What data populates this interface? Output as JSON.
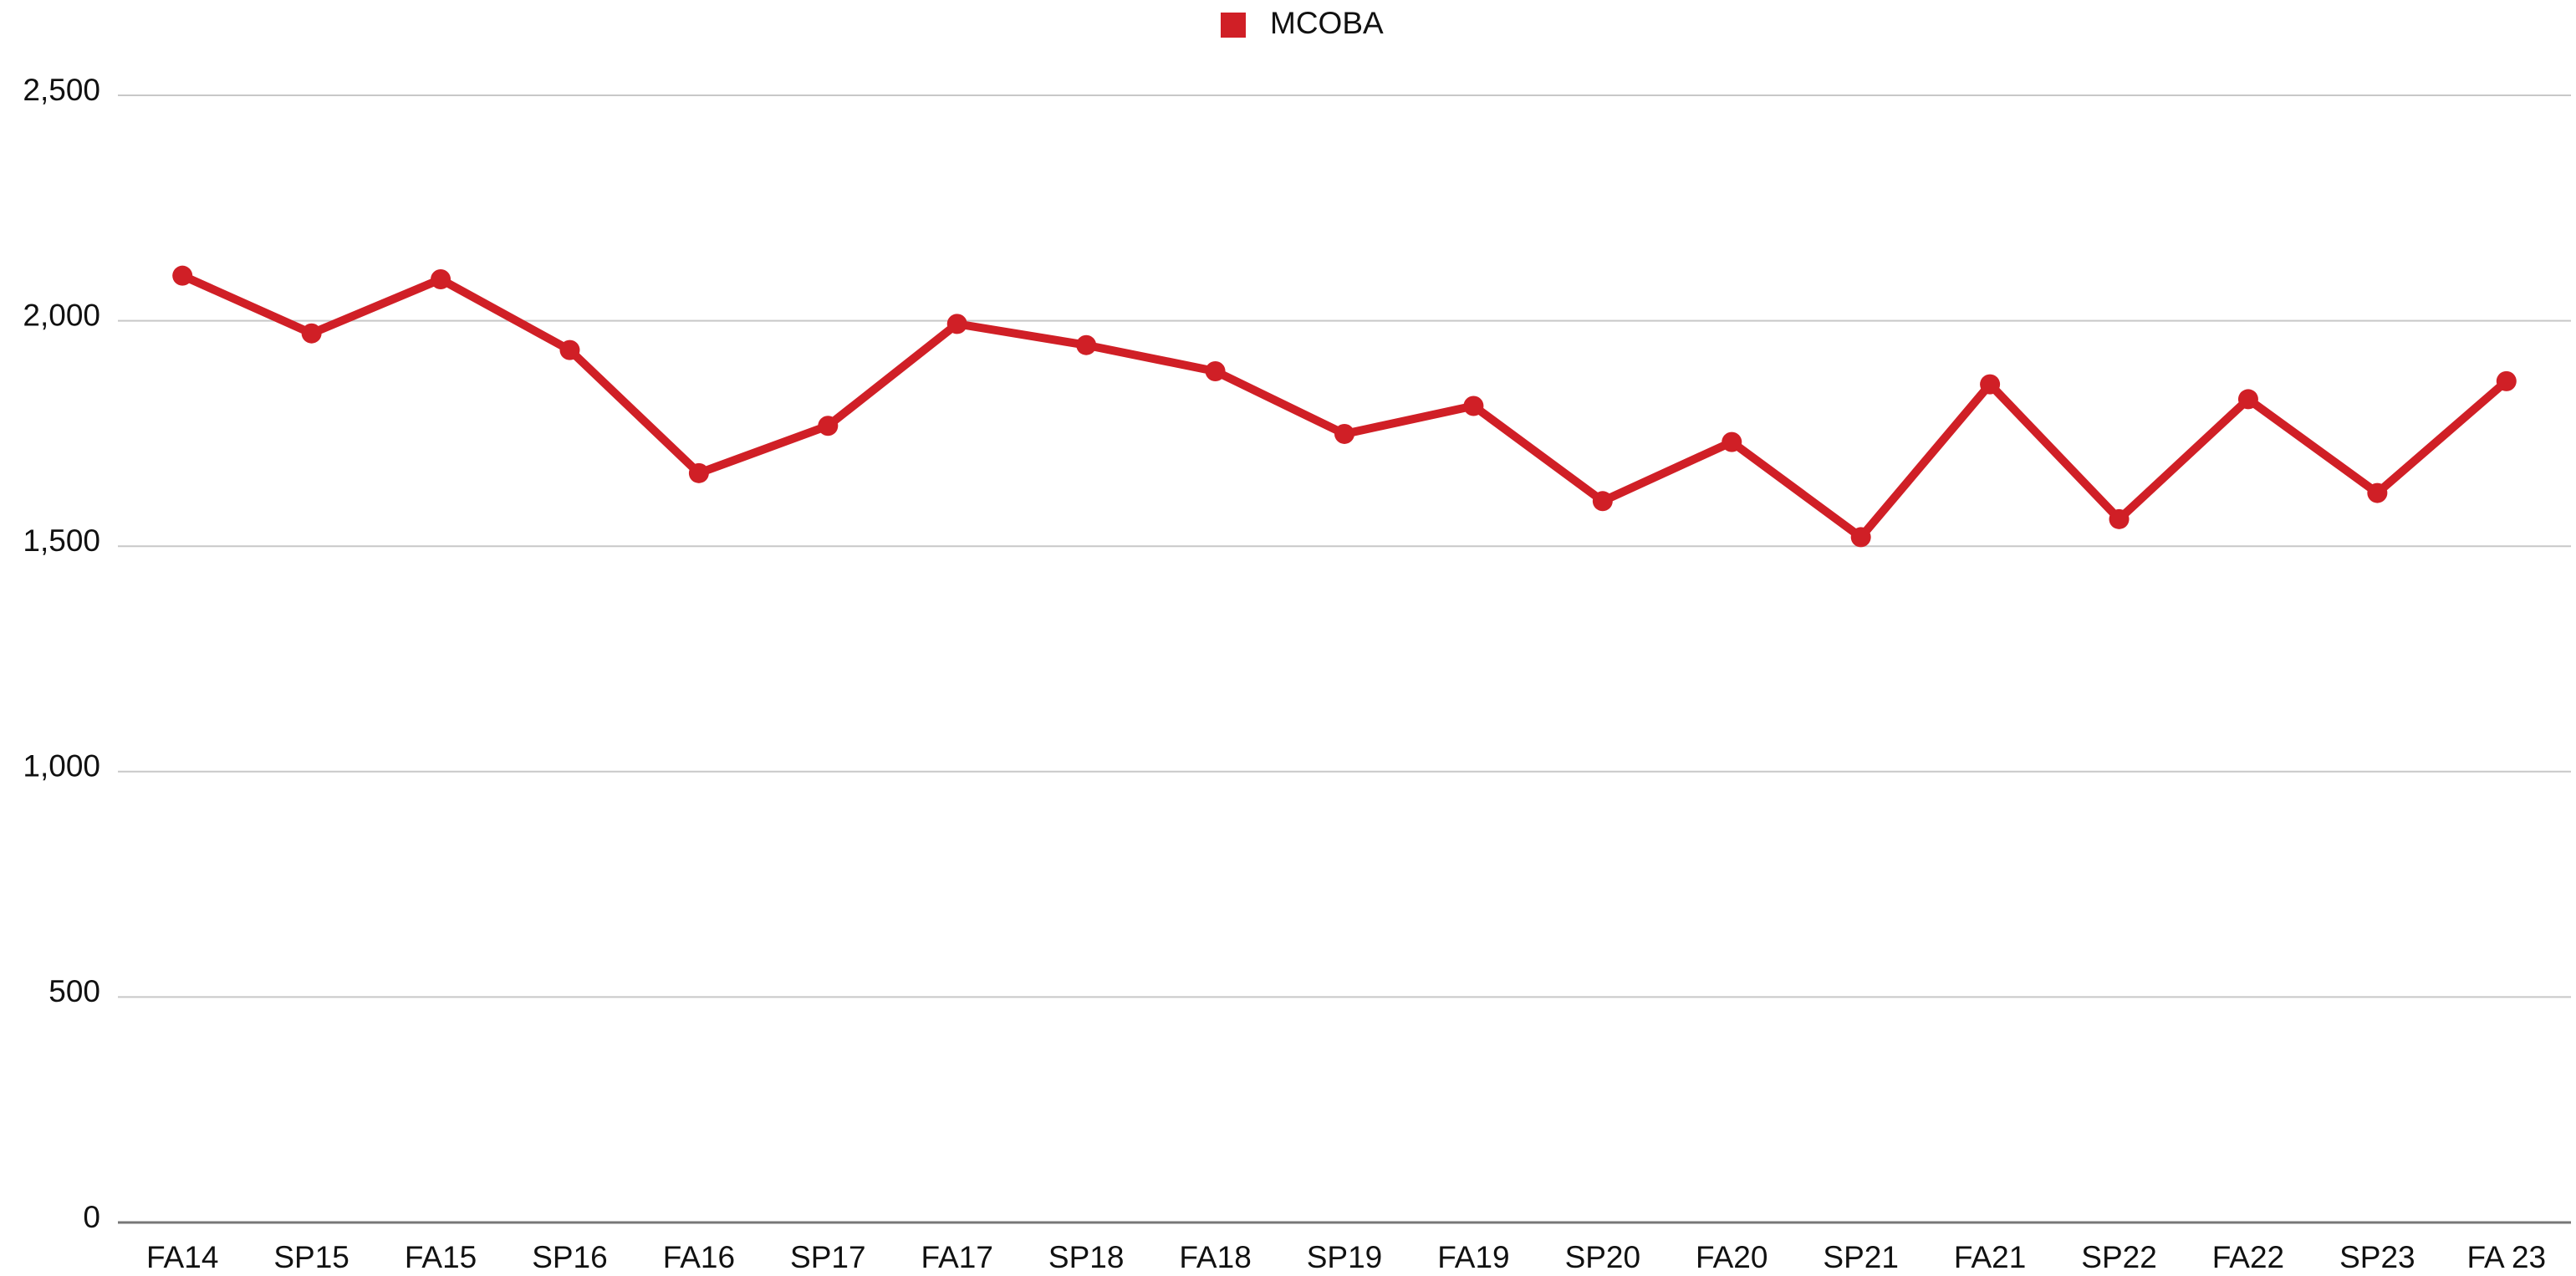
{
  "chart_data": {
    "type": "line",
    "categories": [
      "FA14",
      "SP15",
      "FA15",
      "SP16",
      "FA16",
      "SP17",
      "FA17",
      "SP18",
      "FA18",
      "SP19",
      "FA19",
      "SP20",
      "FA20",
      "SP21",
      "FA21",
      "SP22",
      "FA22",
      "SP23",
      "FA 23"
    ],
    "series": [
      {
        "name": "MCOBA",
        "color": "#d01f26",
        "values": [
          2100,
          1972,
          2092,
          1935,
          1662,
          1767,
          1993,
          1946,
          1888,
          1749,
          1811,
          1600,
          1731,
          1520,
          1859,
          1560,
          1826,
          1618,
          1866
        ]
      }
    ],
    "ylim": [
      0,
      2500
    ],
    "yticks": [
      0,
      500,
      {
        "value": 1000,
        "label": "1,000"
      },
      {
        "value": 1500,
        "label": "1,500"
      },
      {
        "value": 2000,
        "label": "2,000"
      },
      {
        "value": 2500,
        "label": "2,500"
      }
    ],
    "grid": true,
    "legend": "top"
  }
}
